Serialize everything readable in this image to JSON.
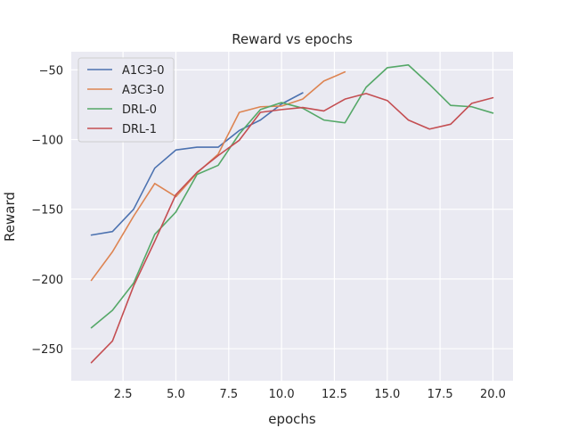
{
  "chart_data": {
    "type": "line",
    "title": "Reward vs epochs",
    "xlabel": "epochs",
    "ylabel": "Reward",
    "xlim": [
      0.05,
      20.95
    ],
    "ylim": [
      -273,
      -37
    ],
    "xticks": [
      2.5,
      5.0,
      7.5,
      10.0,
      12.5,
      15.0,
      17.5,
      20.0
    ],
    "xtick_labels": [
      "2.5",
      "5.0",
      "7.5",
      "10.0",
      "12.5",
      "15.0",
      "17.5",
      "20.0"
    ],
    "yticks": [
      -250,
      -200,
      -150,
      -100,
      -50
    ],
    "ytick_labels": [
      "−250",
      "−200",
      "−150",
      "−100",
      "−50"
    ],
    "grid": true,
    "legend_position": "top-left",
    "series": [
      {
        "name": "A1C3-0",
        "color": "#4c72b0",
        "x": [
          1,
          2,
          3,
          4,
          5,
          6,
          7,
          8,
          9,
          10,
          11
        ],
        "y": [
          -168.5,
          -166,
          -150,
          -120.5,
          -107.5,
          -105.5,
          -105.5,
          -93.5,
          -86,
          -74.5,
          -66.5
        ]
      },
      {
        "name": "A3C3-0",
        "color": "#dd8452",
        "x": [
          1,
          2,
          3,
          4,
          5,
          6,
          7,
          8,
          9,
          10,
          11,
          12,
          13
        ],
        "y": [
          -201,
          -180.5,
          -155,
          -131.5,
          -141,
          -124,
          -110.5,
          -80.5,
          -76.5,
          -76,
          -71,
          -58,
          -51.5
        ]
      },
      {
        "name": "DRL-0",
        "color": "#55a868",
        "x": [
          1,
          2,
          3,
          4,
          5,
          6,
          7,
          8,
          9,
          10,
          11,
          12,
          13,
          14,
          15,
          16,
          17,
          18,
          19,
          20
        ],
        "y": [
          -235,
          -222.5,
          -203,
          -168,
          -152,
          -125,
          -118.5,
          -96,
          -78.5,
          -73.5,
          -77.5,
          -86,
          -88,
          -62.5,
          -48.5,
          -46.5,
          -60.5,
          -75.5,
          -76.5,
          -81
        ]
      },
      {
        "name": "DRL-1",
        "color": "#c44e52",
        "x": [
          1,
          2,
          3,
          4,
          5,
          6,
          7,
          8,
          9,
          10,
          11,
          12,
          13,
          14,
          15,
          16,
          17,
          18,
          19,
          20
        ],
        "y": [
          -260,
          -244.5,
          -205,
          -173,
          -139.5,
          -123.5,
          -111.5,
          -100.5,
          -80.5,
          -78.5,
          -77,
          -79.5,
          -71,
          -67,
          -72,
          -86,
          -92.5,
          -89,
          -74,
          -70
        ]
      }
    ]
  }
}
